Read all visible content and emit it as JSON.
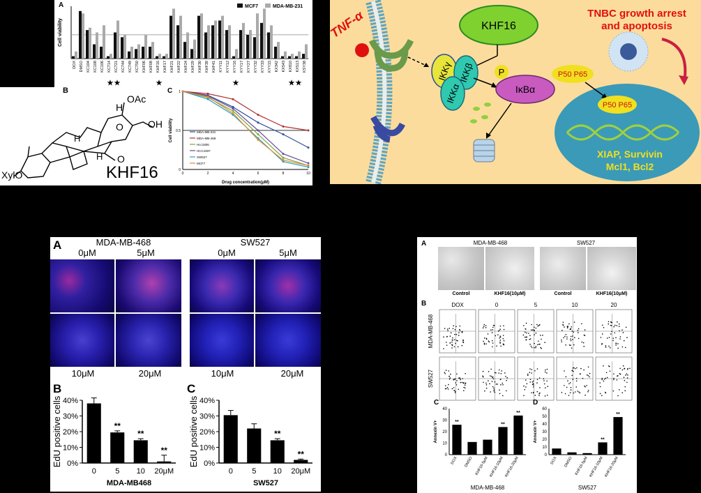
{
  "panel_tl": {
    "label_a": "A",
    "label_b": "B",
    "label_c": "C",
    "ylabel": "Cell viability",
    "legend": [
      "MCF7",
      "MDA-MB-231"
    ],
    "legend_colors": [
      "#111111",
      "#aaaaaa"
    ],
    "compounds": [
      "DOX",
      "DMSO",
      "KC104",
      "KC108",
      "KC106",
      "KC714",
      "KC721",
      "KC744",
      "KC749",
      "KC750",
      "KHF06",
      "KHF08",
      "KHF16",
      "KHF17",
      "KHF21",
      "KHF22",
      "KHF24",
      "KHF29",
      "KHF30",
      "KHF39",
      "KHF41",
      "KYY11",
      "KYY12",
      "KYY16",
      "KYY17",
      "KYY27",
      "KYY32",
      "KYY33",
      "KYY15",
      "KX342",
      "KX543",
      "KX810",
      "KX513",
      "KSY38"
    ],
    "mcf7": [
      0.05,
      1.0,
      0.6,
      0.3,
      0.25,
      0.05,
      0.55,
      0.45,
      0.15,
      0.2,
      0.25,
      0.25,
      0.05,
      0.05,
      0.9,
      0.7,
      0.35,
      0.2,
      0.9,
      0.55,
      0.7,
      0.8,
      0.6,
      0.05,
      0.6,
      0.5,
      0.45,
      0.75,
      0.55,
      0.25,
      0.05,
      0.05,
      0.05,
      0.1
    ],
    "mda": [
      0.15,
      0.95,
      0.65,
      0.55,
      0.7,
      0.1,
      0.8,
      0.5,
      0.25,
      0.3,
      0.5,
      0.35,
      0.1,
      0.1,
      1.05,
      0.9,
      0.55,
      0.4,
      0.95,
      0.7,
      0.8,
      0.9,
      0.7,
      0.2,
      0.75,
      0.6,
      0.95,
      1.05,
      0.7,
      0.35,
      0.15,
      0.1,
      0.15,
      0.3
    ],
    "stars": [
      "KC714",
      "KC721",
      "KHF16",
      "KYY16",
      "KX810",
      "KX513"
    ],
    "compound_name": "KHF16",
    "chem_labels": [
      "OAc",
      "H",
      "O",
      "OH",
      "O",
      "H",
      "H",
      "XylO"
    ],
    "line_chart": {
      "type": "line",
      "xlabel": "Drug concentration(μM)",
      "ylabel": "Cell viability",
      "x": [
        0,
        2,
        4,
        6,
        8,
        10
      ],
      "xticks": [
        "0",
        "2",
        "4",
        "6",
        "8",
        "10"
      ],
      "yticks": [
        "1",
        "0.5",
        "0"
      ],
      "series": [
        {
          "name": "MDA-MB-231",
          "color": "#2a4f9e",
          "values": [
            1.0,
            0.95,
            0.8,
            0.6,
            0.45,
            0.28
          ]
        },
        {
          "name": "MDA-MB-468",
          "color": "#b03030",
          "values": [
            1.0,
            0.97,
            0.9,
            0.7,
            0.55,
            0.5
          ]
        },
        {
          "name": "Hcc1806",
          "color": "#7ea43a",
          "values": [
            1.0,
            0.92,
            0.75,
            0.45,
            0.15,
            0.05
          ]
        },
        {
          "name": "HCC1937",
          "color": "#6a4d9a",
          "values": [
            1.0,
            0.94,
            0.78,
            0.5,
            0.2,
            0.08
          ]
        },
        {
          "name": "SW527",
          "color": "#2aa0c0",
          "values": [
            1.0,
            0.9,
            0.7,
            0.4,
            0.1,
            0.03
          ]
        },
        {
          "name": "MCF7",
          "color": "#e08a30",
          "values": [
            1.0,
            0.93,
            0.72,
            0.38,
            0.12,
            0.05
          ]
        }
      ],
      "hline": 0.5
    }
  },
  "pathway": {
    "tnf": "TNF-α",
    "khf16": "KHF16",
    "ikkg": "IKKγ",
    "ikkb": "IKKβ",
    "ikka": "IKKα",
    "p": "P",
    "ikba": "IκBα",
    "p50p65_top": "P50  P65",
    "p50p65_dna": "P50  P65",
    "genes_line1": "XIAP, Survivin",
    "genes_line2": "Mcl1, Bcl2",
    "title_line1": "TNBC growth arrest",
    "title_line2": "and apoptosis"
  },
  "panel_bl": {
    "label_a": "A",
    "label_b": "B",
    "label_c": "C",
    "cell_line_1": "MDA-MB-468",
    "cell_line_2": "SW527",
    "conc_top": [
      "0μM",
      "5μM",
      "0μM",
      "5μM"
    ],
    "conc_bottom": [
      "10μM",
      "20μM",
      "10μM",
      "20μM"
    ],
    "chart_b": {
      "type": "bar",
      "ylabel": "EdU positive cells",
      "xlabel": "MDA-MB468",
      "categories": [
        "0",
        "5",
        "10",
        "20μM"
      ],
      "values": [
        38,
        19.5,
        14.5,
        1
      ],
      "errors": [
        3.5,
        1,
        1,
        4
      ],
      "sig": [
        "",
        "**",
        "**",
        "**"
      ],
      "yticks": [
        "40%",
        "30%",
        "20%",
        "10%",
        "0%"
      ],
      "ylim": [
        0,
        40
      ]
    },
    "chart_c": {
      "type": "bar",
      "ylabel": "EdU positive cells",
      "xlabel": "SW527",
      "categories": [
        "0",
        "5",
        "10",
        "20μM"
      ],
      "values": [
        30.5,
        22,
        14.5,
        2
      ],
      "errors": [
        3,
        3,
        1,
        0.5
      ],
      "sig": [
        "",
        "",
        "**",
        "**"
      ],
      "yticks": [
        "40%",
        "30%",
        "20%",
        "10%",
        "0%"
      ],
      "ylim": [
        0,
        40
      ]
    }
  },
  "panel_br": {
    "label_a": "A",
    "label_b": "B",
    "label_c": "C",
    "label_d": "D",
    "cell_line_1": "MDA-MB-468",
    "cell_line_2": "SW527",
    "micro_labels": [
      "Control",
      "KHF16(10μM)",
      "Control",
      "KHF16(10μM)"
    ],
    "flow_cols": [
      "DOX",
      "0",
      "5",
      "10",
      "20"
    ],
    "flow_rows": [
      "MDA-MB-468",
      "SW527"
    ],
    "chart_c": {
      "type": "bar",
      "ylabel": "Annexin V+",
      "xlabel": "MDA-MB-468",
      "categories": [
        "DOX",
        "DMSO",
        "KHF16-5μM",
        "KHF16-10μM",
        "KHF16-20μM"
      ],
      "values": [
        26,
        11,
        13,
        24,
        34
      ],
      "sig": [
        "**",
        "",
        "",
        "**",
        "**"
      ],
      "yticks": [
        "40",
        "30",
        "20",
        "10",
        "0"
      ],
      "ylim": [
        0,
        40
      ]
    },
    "chart_d": {
      "type": "bar",
      "ylabel": "Annexin V+",
      "xlabel": "SW527",
      "categories": [
        "DOX",
        "DMSO",
        "KHF16-5μM",
        "KHF16-10μM",
        "KHF16-20μM"
      ],
      "values": [
        8,
        3,
        2,
        16,
        49
      ],
      "sig": [
        "",
        "",
        "",
        "**",
        "**"
      ],
      "yticks": [
        "60",
        "50",
        "40",
        "30",
        "20",
        "10",
        "0"
      ],
      "ylim": [
        0,
        60
      ]
    }
  }
}
